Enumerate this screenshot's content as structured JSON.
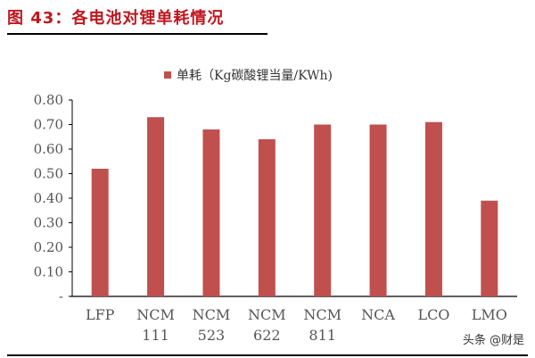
{
  "title": "图 43：各电池对锂单耗情况",
  "watermark": "头条 @财是",
  "chart_data": {
    "type": "bar",
    "categories": [
      [
        "LFP"
      ],
      [
        "NCM",
        "111"
      ],
      [
        "NCM",
        "523"
      ],
      [
        "NCM",
        "622"
      ],
      [
        "NCM",
        "811"
      ],
      [
        "NCA"
      ],
      [
        "LCO"
      ],
      [
        "LMO"
      ]
    ],
    "series": [
      {
        "name": "单耗（Kg碳酸锂当量/KWh)",
        "values": [
          0.52,
          0.73,
          0.68,
          0.64,
          0.7,
          0.7,
          0.71,
          0.39
        ],
        "color": "#c0504d"
      }
    ],
    "ylim": [
      0,
      0.8
    ],
    "yticks": [
      "-",
      "0.10",
      "0.20",
      "0.30",
      "0.40",
      "0.50",
      "0.60",
      "0.70",
      "0.80"
    ],
    "grid": false,
    "legend": "top-center"
  }
}
